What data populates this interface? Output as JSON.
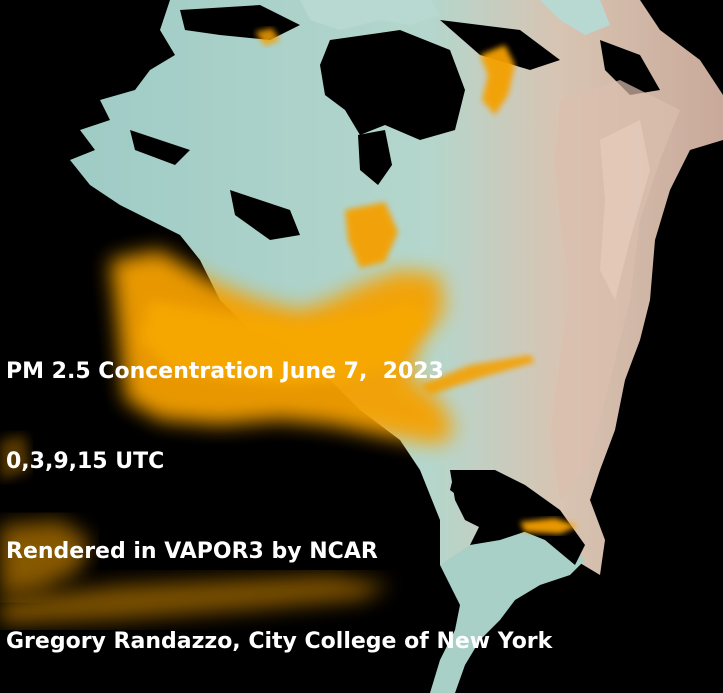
{
  "caption": {
    "line1": "PM 2.5 Concentration June 7,  2023",
    "line2": "0,3,9,15 UTC",
    "line3": "Rendered in VAPOR3 by NCAR",
    "line4": "Gregory Randazzo, City College of New York"
  },
  "colors": {
    "background": "#000000",
    "land": "#a8cfc8",
    "mountains": "#d9b9a8",
    "smoke_plume": "#f5a000",
    "caption_text": "#ffffff"
  }
}
